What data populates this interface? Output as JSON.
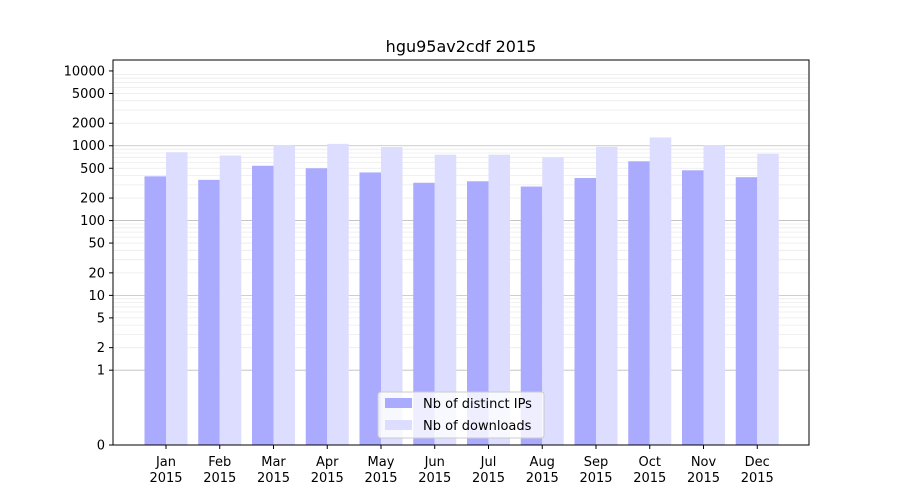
{
  "chart_data": {
    "type": "bar",
    "title": "hgu95av2cdf 2015",
    "xlabel": "",
    "ylabel": "",
    "y_scale": "symlog",
    "ylim": [
      0,
      14000
    ],
    "y_ticks": [
      0,
      1,
      2,
      5,
      10,
      20,
      50,
      100,
      200,
      500,
      1000,
      2000,
      5000,
      10000
    ],
    "grid": true,
    "legend_position": "bottom-center",
    "categories": [
      [
        "Jan",
        "2015"
      ],
      [
        "Feb",
        "2015"
      ],
      [
        "Mar",
        "2015"
      ],
      [
        "Apr",
        "2015"
      ],
      [
        "May",
        "2015"
      ],
      [
        "Jun",
        "2015"
      ],
      [
        "Jul",
        "2015"
      ],
      [
        "Aug",
        "2015"
      ],
      [
        "Sep",
        "2015"
      ],
      [
        "Oct",
        "2015"
      ],
      [
        "Nov",
        "2015"
      ],
      [
        "Dec",
        "2015"
      ]
    ],
    "series": [
      {
        "name": "Nb of distinct IPs",
        "color": "#aaaaff",
        "values": [
          390,
          350,
          540,
          500,
          440,
          320,
          335,
          285,
          370,
          620,
          470,
          380
        ]
      },
      {
        "name": "Nb of downloads",
        "color": "#ddddff",
        "values": [
          820,
          740,
          1000,
          1060,
          960,
          760,
          760,
          700,
          970,
          1290,
          1000,
          780
        ]
      }
    ]
  }
}
